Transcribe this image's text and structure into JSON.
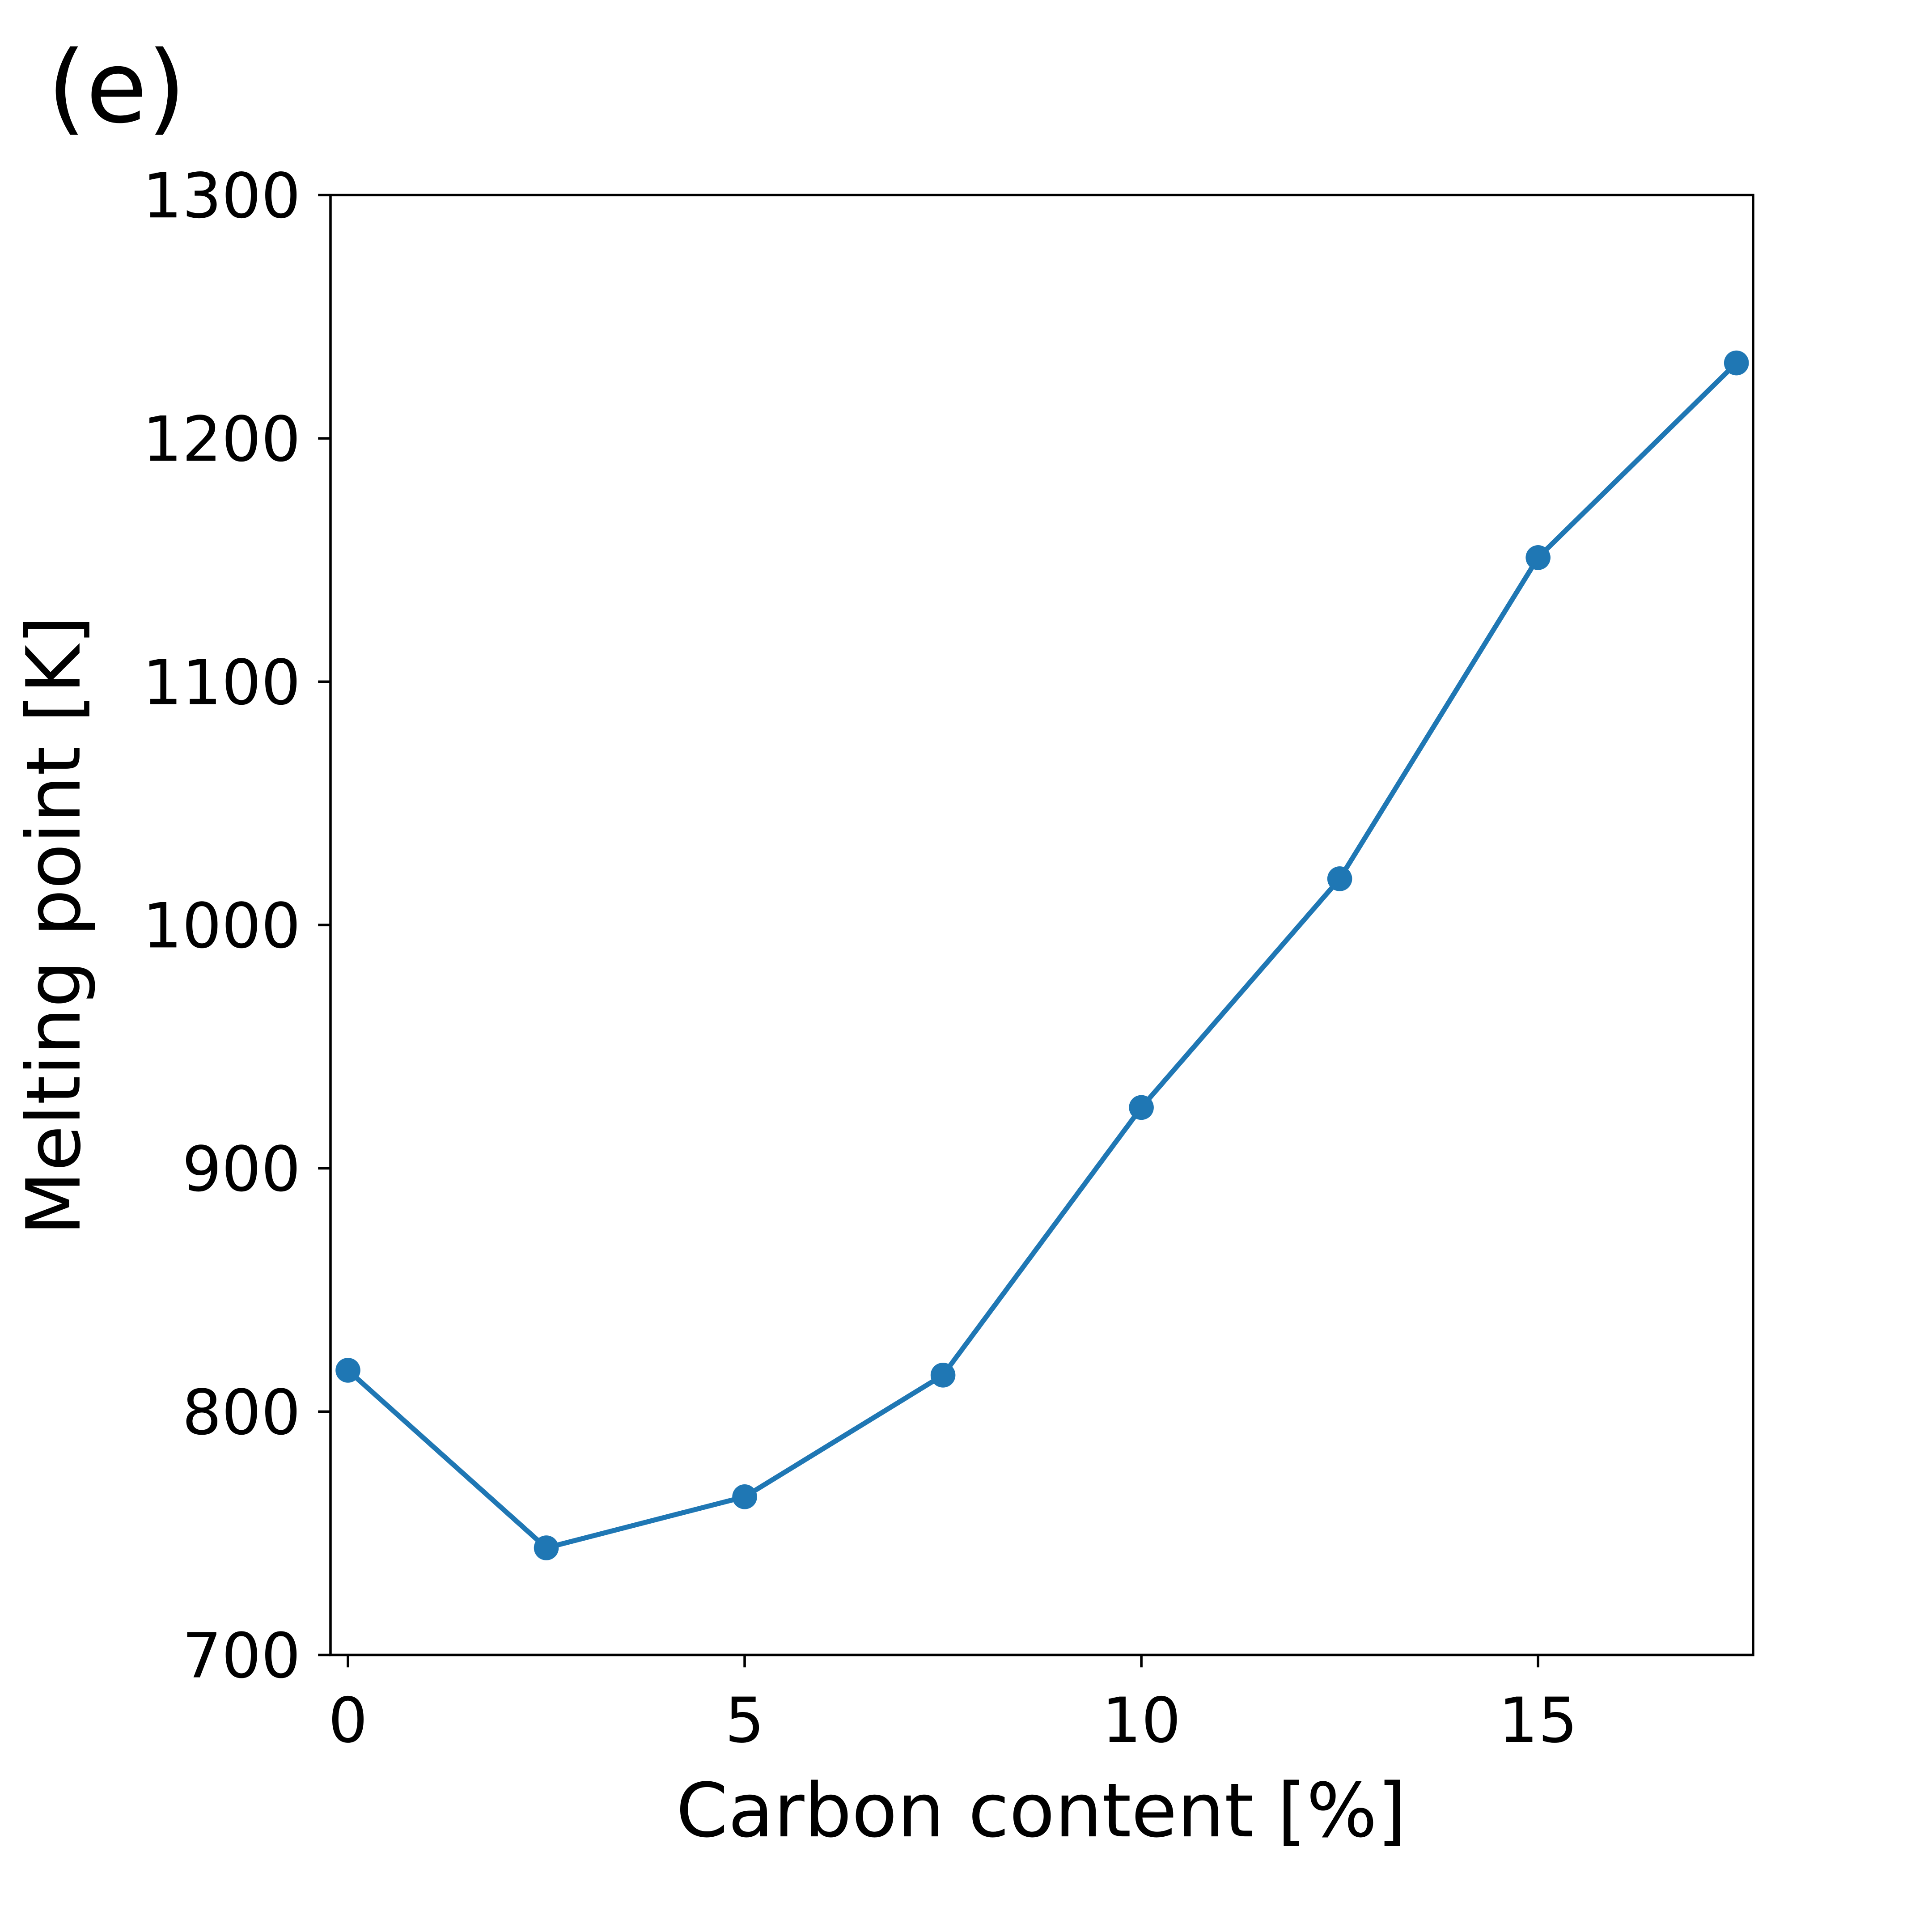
{
  "chart_data": {
    "type": "line",
    "title": "(e)",
    "xlabel": "Carbon content [%]",
    "ylabel": "Melting point [K]",
    "x": [
      0,
      2.5,
      5,
      7.5,
      10,
      12.5,
      15,
      17.5
    ],
    "values": [
      817,
      744,
      765,
      815,
      925,
      1019,
      1151,
      1231
    ],
    "color": "#1f77b4",
    "xlim": [
      -0.22,
      17.71
    ],
    "xticks": [
      0,
      5,
      10,
      15
    ],
    "ylim": [
      700,
      1300
    ],
    "yticks": [
      700,
      800,
      900,
      1000,
      1100,
      1200,
      1300
    ],
    "grid": false
  }
}
